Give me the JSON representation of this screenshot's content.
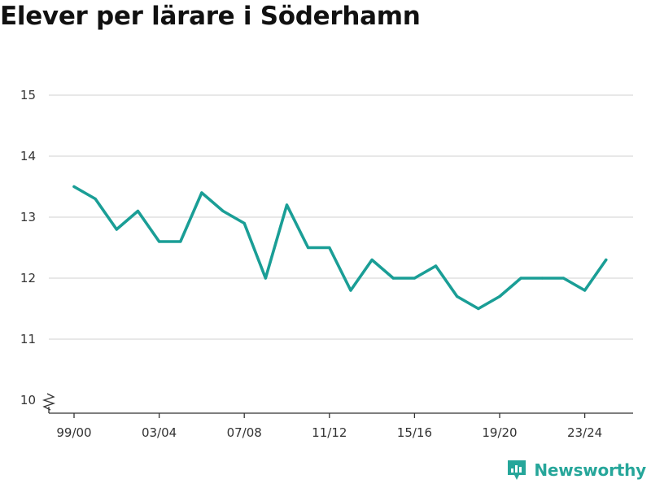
{
  "title": "Elever per lärare i Söderhamn",
  "brand": "Newsworthy",
  "colors": {
    "line": "#1a9e96",
    "grid": "#d9d9d9",
    "brand": "#26a69a"
  },
  "chart_data": {
    "type": "line",
    "title": "Elever per lärare i Söderhamn",
    "xlabel": "",
    "ylabel": "",
    "ylim": [
      10,
      15
    ],
    "y_ticks": [
      10,
      11,
      12,
      13,
      14,
      15
    ],
    "y_axis_break": true,
    "grid": true,
    "x_tick_labels": [
      "99/00",
      "03/04",
      "07/08",
      "11/12",
      "15/16",
      "19/20",
      "23/24"
    ],
    "categories": [
      "99/00",
      "00/01",
      "01/02",
      "02/03",
      "03/04",
      "04/05",
      "05/06",
      "06/07",
      "07/08",
      "08/09",
      "09/10",
      "10/11",
      "11/12",
      "12/13",
      "13/14",
      "14/15",
      "15/16",
      "16/17",
      "17/18",
      "18/19",
      "19/20",
      "20/21",
      "21/22",
      "22/23",
      "23/24",
      "24/25"
    ],
    "series": [
      {
        "values": [
          13.5,
          13.3,
          12.8,
          13.1,
          12.6,
          12.6,
          13.4,
          13.1,
          12.9,
          12.0,
          13.2,
          12.5,
          12.5,
          11.8,
          12.3,
          12.0,
          12.0,
          12.2,
          11.7,
          11.5,
          11.7,
          12.0,
          12.0,
          12.0,
          11.8,
          12.3
        ]
      }
    ]
  }
}
